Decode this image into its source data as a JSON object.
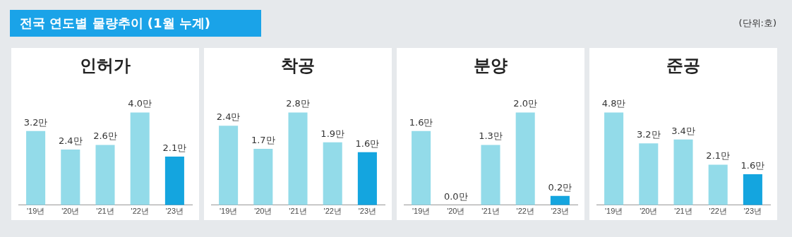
{
  "chart_data": [
    {
      "type": "other",
      "title": "전국 연도별 물량추이 (1월 누계)",
      "annotations": [
        "(단위:호)"
      ]
    },
    {
      "type": "bar",
      "title": "인허가",
      "categories": [
        "'19년",
        "'20년",
        "'21년",
        "'22년",
        "'23년"
      ],
      "values": [
        3.2,
        2.4,
        2.6,
        4.0,
        2.1
      ],
      "colors": [
        "#93dbe9",
        "#93dbe9",
        "#93dbe9",
        "#93dbe9",
        "#14a5df"
      ],
      "value_labels": [
        "3.2만",
        "2.4만",
        "2.6만",
        "4.0만",
        "2.1만"
      ],
      "tick_labels": "x",
      "grid": false,
      "legend": false
    },
    {
      "type": "bar",
      "title": "착공",
      "categories": [
        "'19년",
        "'20년",
        "'21년",
        "'22년",
        "'23년"
      ],
      "values": [
        2.4,
        1.7,
        2.8,
        1.9,
        1.6
      ],
      "colors": [
        "#93dbe9",
        "#93dbe9",
        "#93dbe9",
        "#93dbe9",
        "#14a5df"
      ],
      "value_labels": [
        "2.4만",
        "1.7만",
        "2.8만",
        "1.9만",
        "1.6만"
      ],
      "tick_labels": "x",
      "grid": false,
      "legend": false
    },
    {
      "type": "bar",
      "title": "분양",
      "categories": [
        "'19년",
        "'20년",
        "'21년",
        "'22년",
        "'23년"
      ],
      "values": [
        1.6,
        0.0,
        1.3,
        2.0,
        0.2
      ],
      "colors": [
        "#93dbe9",
        "#93dbe9",
        "#93dbe9",
        "#93dbe9",
        "#14a5df"
      ],
      "value_labels": [
        "1.6만",
        "0.0만",
        "1.3만",
        "2.0만",
        "0.2만"
      ],
      "tick_labels": "x",
      "grid": false,
      "legend": false
    },
    {
      "type": "bar",
      "title": "준공",
      "categories": [
        "'19년",
        "'20년",
        "'21년",
        "'22년",
        "'23년"
      ],
      "values": [
        4.8,
        3.2,
        3.4,
        2.1,
        1.6
      ],
      "colors": [
        "#93dbe9",
        "#93dbe9",
        "#93dbe9",
        "#93dbe9",
        "#14a5df"
      ],
      "value_labels": [
        "4.8만",
        "3.2만",
        "3.4만",
        "2.1만",
        "1.6만"
      ],
      "tick_labels": "x",
      "grid": false,
      "legend": false
    }
  ]
}
